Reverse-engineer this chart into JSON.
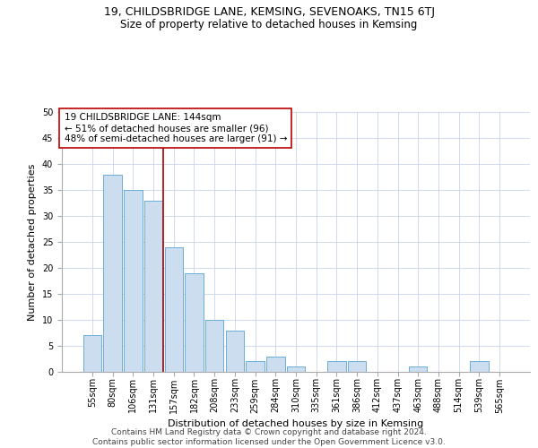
{
  "title": "19, CHILDSBRIDGE LANE, KEMSING, SEVENOAKS, TN15 6TJ",
  "subtitle": "Size of property relative to detached houses in Kemsing",
  "xlabel": "Distribution of detached houses by size in Kemsing",
  "ylabel": "Number of detached properties",
  "footer_line1": "Contains HM Land Registry data © Crown copyright and database right 2024.",
  "footer_line2": "Contains public sector information licensed under the Open Government Licence v3.0.",
  "annotation_line1": "19 CHILDSBRIDGE LANE: 144sqm",
  "annotation_line2": "← 51% of detached houses are smaller (96)",
  "annotation_line3": "48% of semi-detached houses are larger (91) →",
  "bar_labels": [
    "55sqm",
    "80sqm",
    "106sqm",
    "131sqm",
    "157sqm",
    "182sqm",
    "208sqm",
    "233sqm",
    "259sqm",
    "284sqm",
    "310sqm",
    "335sqm",
    "361sqm",
    "386sqm",
    "412sqm",
    "437sqm",
    "463sqm",
    "488sqm",
    "514sqm",
    "539sqm",
    "565sqm"
  ],
  "bar_values": [
    7,
    38,
    35,
    33,
    24,
    19,
    10,
    8,
    2,
    3,
    1,
    0,
    2,
    2,
    0,
    0,
    1,
    0,
    0,
    2,
    0
  ],
  "bar_color": "#ccddf0",
  "bar_edge_color": "#6aaed6",
  "vline_x": 3.5,
  "vline_color": "#aa0000",
  "annotation_box_color": "#bb0000",
  "ylim": [
    0,
    50
  ],
  "yticks": [
    0,
    5,
    10,
    15,
    20,
    25,
    30,
    35,
    40,
    45,
    50
  ],
  "grid_color": "#c8d4e8",
  "title_fontsize": 9,
  "subtitle_fontsize": 8.5,
  "xlabel_fontsize": 8,
  "ylabel_fontsize": 8,
  "tick_fontsize": 7,
  "annotation_fontsize": 7.5,
  "footer_fontsize": 6.5
}
